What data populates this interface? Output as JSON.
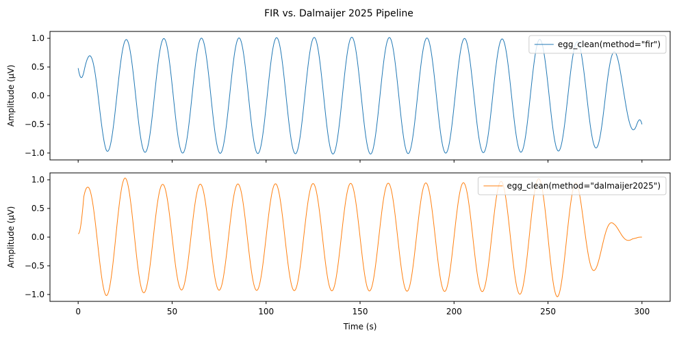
{
  "chart_data": {
    "type": "line",
    "title": "FIR vs. Dalmaijer 2025 Pipeline",
    "xlabel": "Time (s)",
    "x_ticks": [
      0,
      50,
      100,
      150,
      200,
      250,
      300
    ],
    "subplots": [
      {
        "ylabel": "Amplitude (µV)",
        "xlim": [
          -15,
          315
        ],
        "ylim": [
          -1.12,
          1.12
        ],
        "y_ticks": [
          -1.0,
          -0.5,
          0.0,
          0.5,
          1.0
        ],
        "y_tick_labels": [
          "−1.0",
          "−0.5",
          "0.0",
          "0.5",
          "1.0"
        ],
        "show_x_tick_labels": false,
        "legend": "top-right",
        "series": [
          {
            "name": "egg_clean(method=\"fir\")",
            "color": "#1f77b4",
            "x_range": [
              0,
              300
            ],
            "period_s": 20,
            "phase_zero_crossing_s": 0.6,
            "envelope": [
              [
                0,
                0.5
              ],
              [
                5,
                0.66
              ],
              [
                10,
                0.86
              ],
              [
                15,
                0.97
              ],
              [
                50,
                1.0
              ],
              [
                150,
                1.02
              ],
              [
                250,
                0.98
              ],
              [
                280,
                0.9
              ],
              [
                290,
                0.65
              ],
              [
                300,
                0.55
              ]
            ],
            "start_value": 0.48,
            "end_value": -0.5
          }
        ]
      },
      {
        "ylabel": "Amplitude (µV)",
        "xlim": [
          -15,
          315
        ],
        "ylim": [
          -1.12,
          1.12
        ],
        "y_ticks": [
          -1.0,
          -0.5,
          0.0,
          0.5,
          1.0
        ],
        "y_tick_labels": [
          "−1.0",
          "−0.5",
          "0.0",
          "0.5",
          "1.0"
        ],
        "show_x_tick_labels": true,
        "legend": "top-right",
        "series": [
          {
            "name": "egg_clean(method=\"dalmaijer2025\")",
            "color": "#ff7f0e",
            "x_range": [
              0,
              300
            ],
            "period_s": 20,
            "phase_zero_crossing_s": 0,
            "envelope": [
              [
                0,
                0.87
              ],
              [
                5,
                0.87
              ],
              [
                15,
                1.02
              ],
              [
                25,
                1.03
              ],
              [
                35,
                0.97
              ],
              [
                45,
                0.92
              ],
              [
                215,
                0.95
              ],
              [
                255,
                1.04
              ],
              [
                265,
                0.95
              ],
              [
                275,
                0.57
              ],
              [
                285,
                0.23
              ],
              [
                295,
                0.03
              ],
              [
                300,
                0.0
              ]
            ],
            "start_value": 0.06,
            "end_value": 0.0
          }
        ]
      }
    ]
  }
}
